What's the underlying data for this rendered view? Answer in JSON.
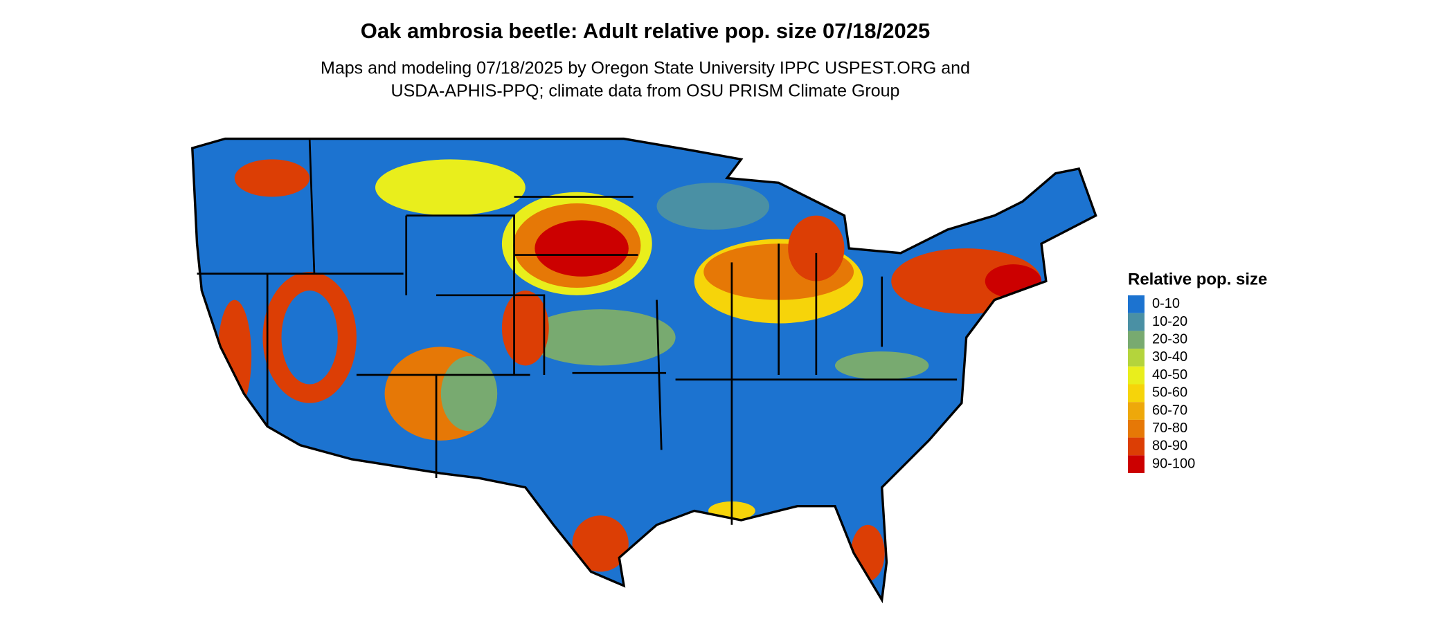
{
  "title": "Oak ambrosia beetle: Adult relative pop. size 07/18/2025",
  "subtitle": [
    "Maps and modeling 07/18/2025 by Oregon State University IPPC USPEST.ORG and",
    "USDA-APHIS-PPQ; climate data from OSU PRISM Climate Group"
  ],
  "legend": {
    "title": "Relative pop. size",
    "items": [
      {
        "label": "0-10",
        "color": "#1c73d0"
      },
      {
        "label": "10-20",
        "color": "#4a90a4"
      },
      {
        "label": "20-30",
        "color": "#78aa70"
      },
      {
        "label": "30-40",
        "color": "#b4d43c"
      },
      {
        "label": "40-50",
        "color": "#e9ee1c"
      },
      {
        "label": "50-60",
        "color": "#f6d40a"
      },
      {
        "label": "60-70",
        "color": "#eea80a"
      },
      {
        "label": "70-80",
        "color": "#e67806"
      },
      {
        "label": "80-90",
        "color": "#dc3e05"
      },
      {
        "label": "90-100",
        "color": "#cc0000"
      }
    ]
  }
}
